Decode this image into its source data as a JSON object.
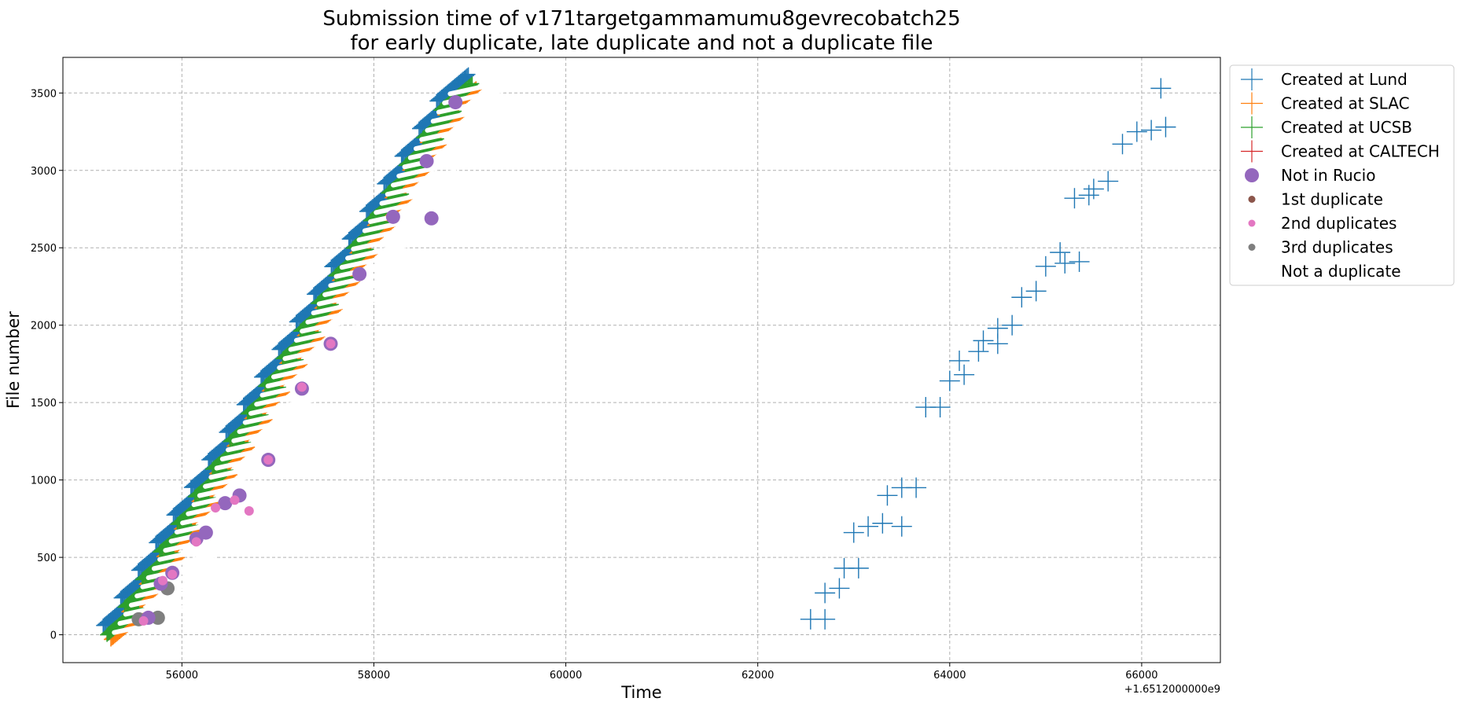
{
  "chart_data": {
    "type": "scatter",
    "title": [
      "Submission time of v171targetgammamumu8gevrecobatch25",
      "for early duplicate, late duplicate and not a duplicate file"
    ],
    "xlabel": "Time",
    "ylabel": "File number",
    "x_offset_label": "+1.6512000000e9",
    "xlim": [
      54760,
      66820
    ],
    "ylim": [
      -180,
      3730
    ],
    "xticks": [
      56000,
      58000,
      60000,
      62000,
      64000,
      66000
    ],
    "yticks": [
      0,
      500,
      1000,
      1500,
      2000,
      2500,
      3000,
      3500
    ],
    "grid": true,
    "legend_position": "outside-top-right",
    "colors": {
      "lund": "#1f77b4",
      "slac": "#ff7f0e",
      "ucsb": "#2ca02c",
      "caltech": "#d62728",
      "not_in_rucio": "#9467bd",
      "first_dup": "#8c564b",
      "second_dup": "#e377c2",
      "third_dup": "#7f7f7f"
    },
    "legend": [
      {
        "label": "Created at Lund",
        "marker": "plus",
        "color": "#1f77b4"
      },
      {
        "label": "Created at SLAC",
        "marker": "plus",
        "color": "#ff7f0e"
      },
      {
        "label": "Created at UCSB",
        "marker": "plus",
        "color": "#2ca02c"
      },
      {
        "label": "Created at CALTECH",
        "marker": "plus",
        "color": "#d62728"
      },
      {
        "label": "Not in Rucio",
        "marker": "big-circle",
        "color": "#9467bd"
      },
      {
        "label": "1st duplicate",
        "marker": "dot",
        "color": "#8c564b"
      },
      {
        "label": "2nd duplicates",
        "marker": "dot",
        "color": "#e377c2"
      },
      {
        "label": "3rd duplicates",
        "marker": "dot",
        "color": "#7f7f7f"
      },
      {
        "label": "Not a duplicate",
        "marker": "none",
        "color": "#ffffff"
      }
    ],
    "early_batch": {
      "x_start": 55300,
      "x_end": 58950,
      "y_start": 0,
      "y_end": 3560,
      "files_per_site": 600,
      "sites": [
        "lund",
        "slac",
        "ucsb"
      ]
    },
    "late_lund": [
      [
        62550,
        100
      ],
      [
        62700,
        100
      ],
      [
        62700,
        270
      ],
      [
        62850,
        300
      ],
      [
        62900,
        430
      ],
      [
        63050,
        430
      ],
      [
        63000,
        660
      ],
      [
        63150,
        700
      ],
      [
        63300,
        720
      ],
      [
        63350,
        900
      ],
      [
        63500,
        700
      ],
      [
        63500,
        950
      ],
      [
        63650,
        950
      ],
      [
        63750,
        1470
      ],
      [
        63900,
        1470
      ],
      [
        64000,
        1640
      ],
      [
        64150,
        1680
      ],
      [
        64100,
        1770
      ],
      [
        64300,
        1830
      ],
      [
        64350,
        1900
      ],
      [
        64500,
        1880
      ],
      [
        64500,
        1980
      ],
      [
        64650,
        2000
      ],
      [
        64750,
        2180
      ],
      [
        64900,
        2220
      ],
      [
        65000,
        2380
      ],
      [
        65150,
        2470
      ],
      [
        65200,
        2400
      ],
      [
        65350,
        2410
      ],
      [
        65300,
        2820
      ],
      [
        65450,
        2840
      ],
      [
        65500,
        2880
      ],
      [
        65650,
        2930
      ],
      [
        65800,
        3170
      ],
      [
        65950,
        3250
      ],
      [
        66100,
        3260
      ],
      [
        66250,
        3280
      ],
      [
        66200,
        3530
      ]
    ],
    "not_in_rucio": [
      [
        55650,
        110
      ],
      [
        55780,
        330
      ],
      [
        55900,
        400
      ],
      [
        56150,
        620
      ],
      [
        56250,
        660
      ],
      [
        56450,
        850
      ],
      [
        56600,
        900
      ],
      [
        56900,
        1130
      ],
      [
        57250,
        1590
      ],
      [
        57550,
        1880
      ],
      [
        57850,
        2330
      ],
      [
        58200,
        2700
      ],
      [
        58600,
        2690
      ],
      [
        58550,
        3060
      ],
      [
        58850,
        3440
      ]
    ],
    "second_dups": [
      [
        55600,
        90
      ],
      [
        55800,
        350
      ],
      [
        55900,
        390
      ],
      [
        56150,
        600
      ],
      [
        56350,
        820
      ],
      [
        56550,
        870
      ],
      [
        56700,
        800
      ],
      [
        56900,
        1130
      ],
      [
        57250,
        1600
      ],
      [
        57550,
        1880
      ]
    ],
    "third_dups": [
      [
        55550,
        100
      ],
      [
        55750,
        110
      ],
      [
        55850,
        300
      ]
    ]
  }
}
